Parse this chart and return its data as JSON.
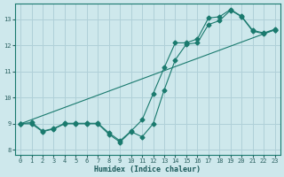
{
  "xlabel": "Humidex (Indice chaleur)",
  "xlim": [
    -0.5,
    23.5
  ],
  "ylim": [
    7.8,
    13.6
  ],
  "yticks": [
    8,
    9,
    10,
    11,
    12,
    13
  ],
  "xticks": [
    0,
    1,
    2,
    3,
    4,
    5,
    6,
    7,
    8,
    9,
    10,
    11,
    12,
    13,
    14,
    15,
    16,
    17,
    18,
    19,
    20,
    21,
    22,
    23
  ],
  "bg_color": "#cee8ec",
  "grid_color": "#b0d0d8",
  "line_color": "#1a7a6e",
  "line1_x": [
    0,
    1,
    2,
    3,
    4,
    5,
    6,
    7,
    8,
    9,
    10,
    11,
    12,
    13,
    14,
    15,
    16,
    17,
    18,
    19,
    20,
    21,
    22,
    23
  ],
  "line1_y": [
    9.0,
    9.0,
    8.7,
    8.8,
    9.0,
    9.0,
    9.0,
    9.0,
    8.6,
    8.3,
    8.7,
    8.5,
    9.0,
    10.3,
    11.45,
    12.05,
    12.1,
    12.8,
    12.95,
    13.35,
    13.1,
    12.55,
    12.45,
    12.6
  ],
  "line2_x": [
    0,
    1,
    2,
    3,
    4,
    5,
    6,
    7,
    8,
    9,
    10,
    11,
    12,
    13,
    14,
    15,
    16,
    17,
    18,
    19,
    20,
    21,
    22,
    23
  ],
  "line2_y": [
    9.0,
    9.05,
    8.72,
    8.82,
    9.02,
    9.02,
    9.02,
    9.02,
    8.65,
    8.35,
    8.72,
    9.15,
    10.15,
    11.15,
    12.1,
    12.1,
    12.25,
    13.05,
    13.1,
    13.38,
    13.12,
    12.58,
    12.48,
    12.62
  ],
  "line3_x": [
    0,
    23
  ],
  "line3_y": [
    9.0,
    12.6
  ]
}
